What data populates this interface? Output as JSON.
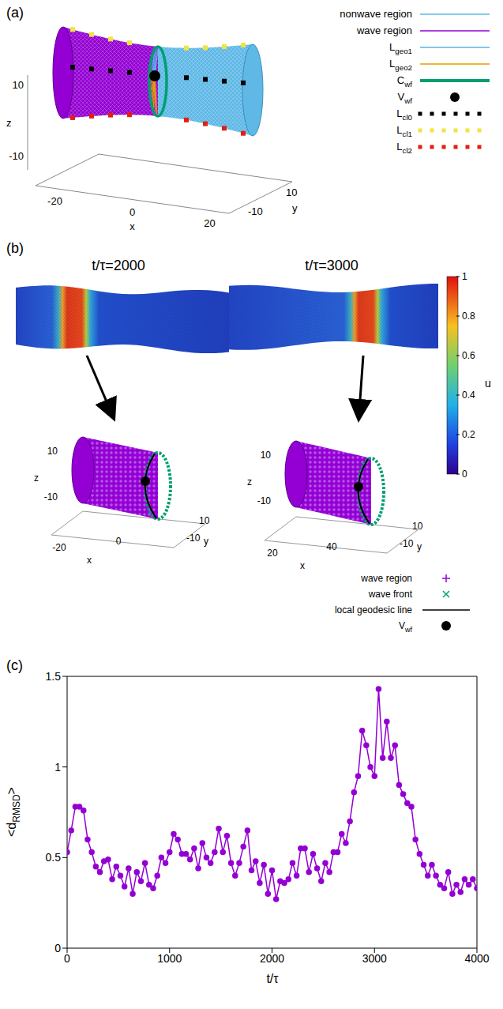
{
  "panel_a": {
    "label": "(a)",
    "axes": {
      "x": {
        "title": "x",
        "ticks": [
          -20,
          0,
          20
        ]
      },
      "y": {
        "title": "y",
        "ticks": [
          10,
          -10
        ]
      },
      "z": {
        "title": "z",
        "ticks": [
          10,
          -10
        ]
      }
    },
    "legend": [
      {
        "text": "nonwave region",
        "color": "#5fb8e6",
        "marker": "line"
      },
      {
        "text": "wave region",
        "color": "#9400d3",
        "marker": "line"
      },
      {
        "text": "L",
        "subscript": "geo1",
        "color": "#56b4e9",
        "marker": "line"
      },
      {
        "text": "L",
        "subscript": "geo2",
        "color": "#e69f00",
        "marker": "line"
      },
      {
        "text": "C",
        "subscript": "wf",
        "color": "#009e73",
        "marker": "thick_line"
      },
      {
        "text": "V",
        "subscript": "wf",
        "color": "#000000",
        "marker": "dot"
      },
      {
        "text": "L",
        "subscript": "cl0",
        "color": "#000000",
        "marker": "dotted"
      },
      {
        "text": "L",
        "subscript": "cl1",
        "color": "#f0e442",
        "marker": "dotted"
      },
      {
        "text": "L",
        "subscript": "cl2",
        "color": "#e51e10",
        "marker": "dotted"
      }
    ]
  },
  "panel_b": {
    "label": "(b)",
    "snapshots": [
      {
        "title": "t/τ=2000",
        "axes": {
          "x": {
            "title": "x",
            "ticks": [
              -20,
              0
            ]
          },
          "y": {
            "title": "y",
            "ticks": [
              10,
              -10
            ]
          },
          "z": {
            "title": "z",
            "ticks": [
              10,
              -10
            ]
          }
        }
      },
      {
        "title": "t/τ=3000",
        "axes": {
          "x": {
            "title": "x",
            "ticks": [
              20,
              40
            ]
          },
          "y": {
            "title": "y",
            "ticks": [
              10,
              -10
            ]
          },
          "z": {
            "title": "z",
            "ticks": [
              10,
              -10
            ]
          }
        }
      }
    ],
    "colorbar": {
      "title": "u",
      "range": [
        0,
        1
      ],
      "ticks": [
        0,
        0.2,
        0.4,
        0.6,
        0.8,
        1
      ]
    },
    "legend": [
      {
        "text": "wave region",
        "color": "#9400d3",
        "marker": "plus"
      },
      {
        "text": "wave front",
        "color": "#009e73",
        "marker": "cross"
      },
      {
        "text": "local geodesic line",
        "color": "#000000",
        "marker": "line"
      },
      {
        "text": "V",
        "subscript": "wf",
        "color": "#000000",
        "marker": "dot"
      }
    ]
  },
  "chart_data": {
    "type": "line",
    "label": "(c)",
    "x_label": {
      "text": "t/τ"
    },
    "y_label": {
      "text": "<d",
      "subscript": "RMSD",
      "suffix": ">"
    },
    "color": "#9400d3",
    "marker": "circle",
    "xlim": [
      0,
      4000
    ],
    "xticks": [
      0,
      1000,
      2000,
      3000,
      4000
    ],
    "ylim": [
      0,
      1.5
    ],
    "yticks": [
      0,
      0.5,
      1,
      1.5
    ],
    "x": [
      0,
      40,
      80,
      120,
      160,
      200,
      240,
      280,
      320,
      360,
      400,
      440,
      480,
      520,
      560,
      600,
      640,
      680,
      720,
      760,
      800,
      840,
      880,
      920,
      960,
      1000,
      1040,
      1080,
      1120,
      1160,
      1200,
      1240,
      1280,
      1320,
      1360,
      1400,
      1440,
      1480,
      1520,
      1560,
      1600,
      1640,
      1680,
      1720,
      1760,
      1800,
      1840,
      1880,
      1920,
      1960,
      2000,
      2040,
      2080,
      2120,
      2160,
      2200,
      2240,
      2280,
      2320,
      2360,
      2400,
      2440,
      2480,
      2520,
      2560,
      2600,
      2640,
      2680,
      2720,
      2760,
      2800,
      2840,
      2880,
      2920,
      2960,
      3000,
      3040,
      3080,
      3120,
      3160,
      3200,
      3240,
      3280,
      3320,
      3360,
      3400,
      3440,
      3480,
      3520,
      3560,
      3600,
      3640,
      3680,
      3720,
      3760,
      3800,
      3840,
      3880,
      3920,
      3960,
      4000
    ],
    "values": [
      0.53,
      0.65,
      0.78,
      0.78,
      0.76,
      0.6,
      0.53,
      0.45,
      0.42,
      0.48,
      0.49,
      0.38,
      0.45,
      0.4,
      0.34,
      0.44,
      0.3,
      0.42,
      0.37,
      0.47,
      0.35,
      0.33,
      0.4,
      0.5,
      0.47,
      0.53,
      0.63,
      0.6,
      0.52,
      0.52,
      0.49,
      0.55,
      0.44,
      0.58,
      0.5,
      0.47,
      0.53,
      0.66,
      0.53,
      0.62,
      0.47,
      0.4,
      0.47,
      0.56,
      0.65,
      0.43,
      0.48,
      0.36,
      0.46,
      0.3,
      0.43,
      0.27,
      0.37,
      0.36,
      0.38,
      0.47,
      0.4,
      0.55,
      0.55,
      0.42,
      0.52,
      0.44,
      0.37,
      0.47,
      0.42,
      0.53,
      0.53,
      0.63,
      0.58,
      0.7,
      0.86,
      0.95,
      1.2,
      1.12,
      1.0,
      0.95,
      1.43,
      1.05,
      1.25,
      1.05,
      1.12,
      0.9,
      0.85,
      0.8,
      0.78,
      0.6,
      0.52,
      0.46,
      0.4,
      0.46,
      0.4,
      0.35,
      0.33,
      0.42,
      0.3,
      0.35,
      0.31,
      0.38,
      0.35,
      0.38,
      0.33
    ]
  }
}
